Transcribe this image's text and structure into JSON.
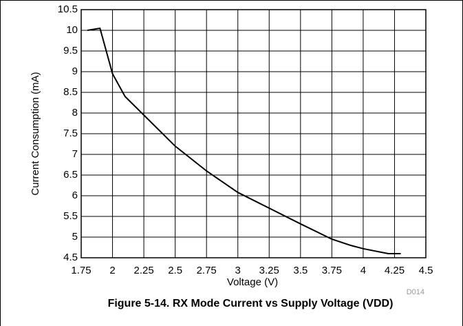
{
  "chart_data": {
    "type": "line",
    "caption": "Figure 5-14. RX Mode Current vs Supply Voltage (VDD)",
    "figure_id": "D014",
    "x_label": "Voltage (V)",
    "y_label": "Current Consumption (mA)",
    "x": [
      1.8,
      1.9,
      2.0,
      2.1,
      2.25,
      2.5,
      2.75,
      3.0,
      3.25,
      3.5,
      3.75,
      3.9,
      4.0,
      4.2,
      4.3
    ],
    "series": [
      {
        "name": "RX Mode Current",
        "color": "#000000",
        "values": [
          10.0,
          10.05,
          8.95,
          8.4,
          7.95,
          7.2,
          6.6,
          6.08,
          5.7,
          5.32,
          4.95,
          4.8,
          4.72,
          4.6,
          4.6
        ]
      }
    ],
    "xlim": [
      1.75,
      4.5
    ],
    "xticks": [
      1.75,
      2,
      2.25,
      2.5,
      2.75,
      3,
      3.25,
      3.5,
      3.75,
      4,
      4.25,
      4.5
    ],
    "ylim": [
      4.5,
      10.5
    ],
    "yticks": [
      4.5,
      5,
      5.5,
      6,
      6.5,
      7,
      7.5,
      8,
      8.5,
      9,
      9.5,
      10,
      10.5
    ],
    "grid": true
  }
}
